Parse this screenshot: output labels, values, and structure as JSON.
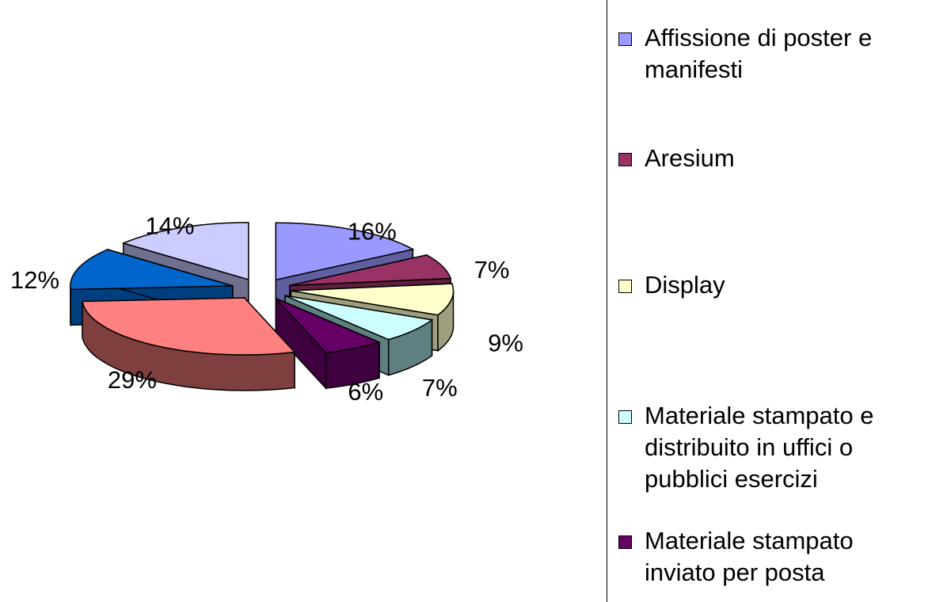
{
  "chart_data": {
    "type": "pie",
    "style": "3d-exploded",
    "slices": [
      {
        "label": "Affissione di poster e manifesti",
        "value": 16,
        "value_label": "16%",
        "color": "#9999ff",
        "side_color": "#5f5f9f"
      },
      {
        "label": "Aresium",
        "value": 7,
        "value_label": "7%",
        "color": "#993366",
        "side_color": "#5f1f3f"
      },
      {
        "label": "Display",
        "value": 9,
        "value_label": "9%",
        "color": "#ffffcc",
        "side_color": "#9f9f7f"
      },
      {
        "label": "Materiale stampato e distribuito in uffici o pubblici esercizi",
        "value": 7,
        "value_label": "7%",
        "color": "#ccffff",
        "side_color": "#5f8080"
      },
      {
        "label": "Materiale stampato inviato per posta",
        "value": 6,
        "value_label": "6%",
        "color": "#660066",
        "side_color": "#3f003f"
      },
      {
        "label": "",
        "value": 29,
        "value_label": "29%",
        "color": "#ff8080",
        "side_color": "#7f3f3f"
      },
      {
        "label": "",
        "value": 12,
        "value_label": "12%",
        "color": "#0066cc",
        "side_color": "#003f7f"
      },
      {
        "label": "",
        "value": 14,
        "value_label": "14%",
        "color": "#ccccff",
        "side_color": "#6f6f8f"
      }
    ],
    "legend": {
      "placement": "right",
      "entries": [
        {
          "label_lines": [
            "Affissione di poster e",
            "manifesti"
          ],
          "color": "#9999ff"
        },
        {
          "label_lines": [
            "Aresium"
          ],
          "color": "#993366"
        },
        {
          "label_lines": [
            "Display"
          ],
          "color": "#ffffcc"
        },
        {
          "label_lines": [
            "Materiale stampato e",
            "distribuito in uffici o",
            "pubblici esercizi"
          ],
          "color": "#ccffff"
        },
        {
          "label_lines": [
            "Materiale stampato",
            "inviato per posta"
          ],
          "color": "#660066"
        }
      ]
    }
  }
}
